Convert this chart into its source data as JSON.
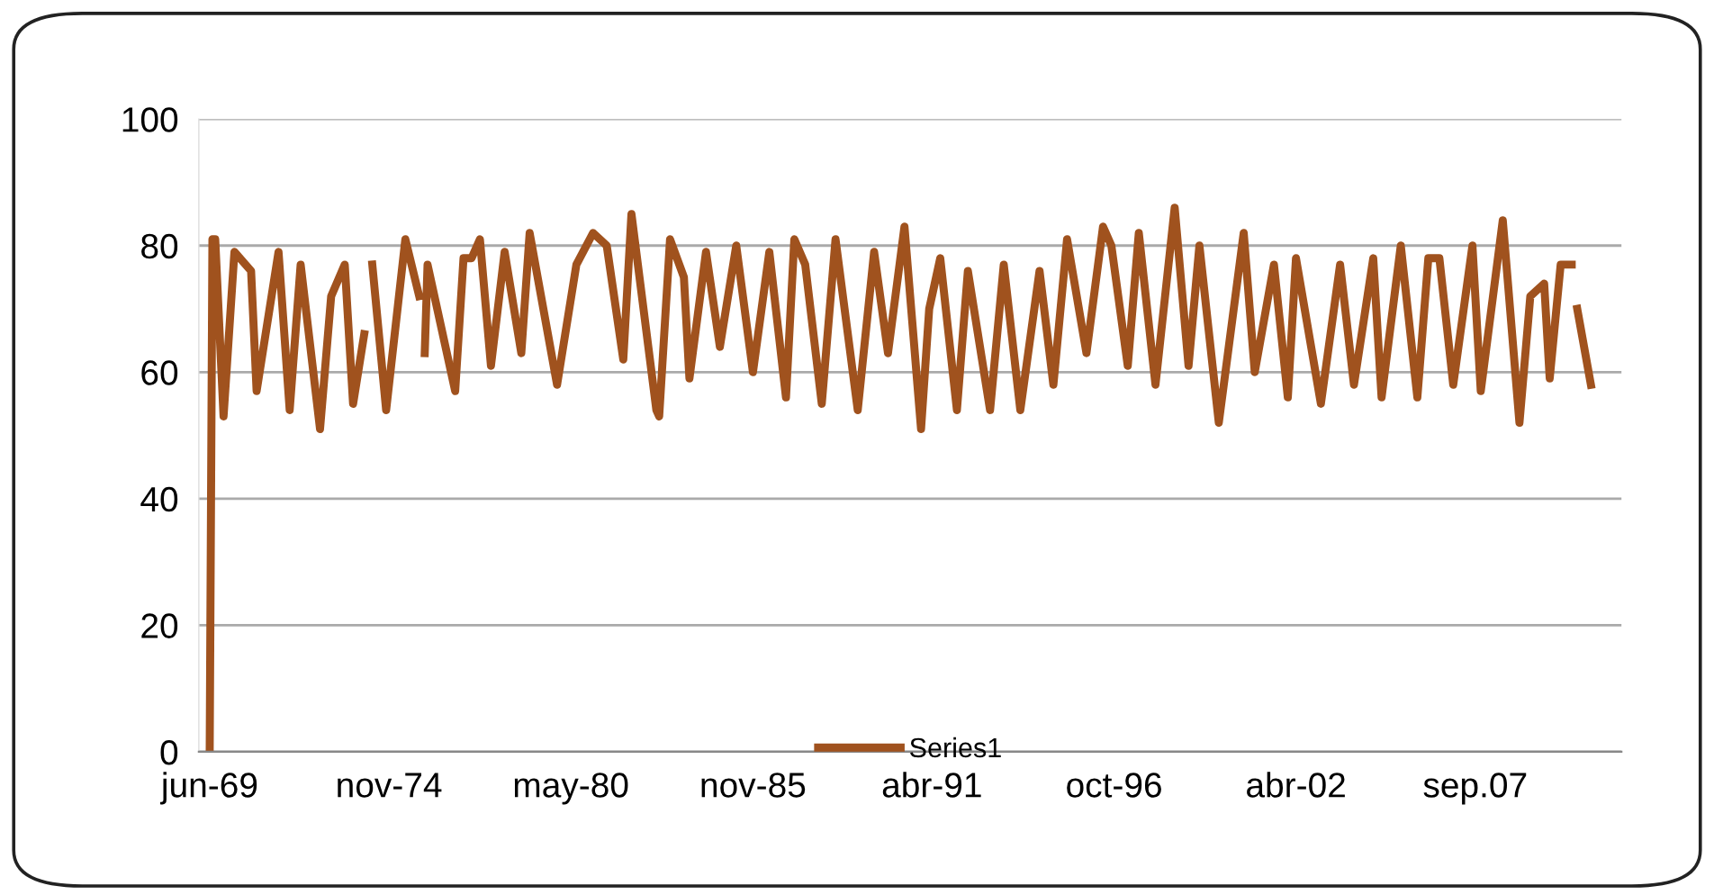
{
  "chart_data": {
    "type": "line",
    "x": [
      "1969-06",
      "1969-07",
      "1969-08",
      "1969-11",
      "1970-03",
      "1970-09",
      "1970-11",
      "1971-07",
      "1971-11",
      "1972-03",
      "1972-10",
      "1973-02",
      "1973-07",
      "1973-10",
      "1974-02",
      "1974-03",
      "1974-05",
      "1974-10",
      "1975-05",
      "1975-10",
      "1975-11",
      "1975-12",
      "1976-01",
      "1976-11",
      "1977-02",
      "1977-05",
      "1977-08",
      "1977-12",
      "1978-05",
      "1978-11",
      "1979-02",
      "1979-12",
      "1980-07",
      "1981-01",
      "1981-06",
      "1981-12",
      "1982-03",
      "1982-12",
      "1983-01",
      "1983-05",
      "1983-10",
      "1983-12",
      "1984-06",
      "1984-11",
      "1985-05",
      "1985-11",
      "1986-05",
      "1986-11",
      "1987-02",
      "1987-06",
      "1987-12",
      "1988-05",
      "1989-01",
      "1989-07",
      "1989-12",
      "1990-06",
      "1990-12",
      "1991-03",
      "1991-07",
      "1992-01",
      "1992-05",
      "1993-01",
      "1993-06",
      "1993-12",
      "1994-07",
      "1994-12",
      "1995-05",
      "1995-12",
      "1996-06",
      "1996-09",
      "1997-03",
      "1997-07",
      "1998-01",
      "1998-08",
      "1999-01",
      "1999-05",
      "1999-12",
      "2000-09",
      "2001-01",
      "2001-08",
      "2002-01",
      "2002-04",
      "2003-01",
      "2003-08",
      "2004-01",
      "2004-08",
      "2004-11",
      "2005-06",
      "2005-12",
      "2006-04",
      "2006-08",
      "2007-01",
      "2007-08",
      "2007-11",
      "2008-07",
      "2009-01",
      "2009-05",
      "2009-10",
      "2009-12",
      "2010-04",
      "2010-08",
      "2010-09",
      "2010-10",
      "2011-03"
    ],
    "series": [
      {
        "name": "Series1",
        "color": "#a0521e",
        "values": [
          0,
          81,
          81,
          53,
          79,
          76,
          57,
          79,
          54,
          77,
          51,
          72,
          77,
          55,
          66,
          null,
          77,
          54,
          81,
          72,
          null,
          63,
          77,
          57,
          78,
          78,
          81,
          61,
          79,
          63,
          82,
          58,
          77,
          82,
          80,
          62,
          85,
          54,
          53,
          81,
          75,
          59,
          79,
          64,
          80,
          60,
          79,
          56,
          81,
          77,
          55,
          81,
          54,
          79,
          63,
          83,
          51,
          70,
          78,
          54,
          76,
          54,
          77,
          54,
          76,
          58,
          81,
          63,
          83,
          80,
          61,
          82,
          58,
          86,
          61,
          80,
          52,
          82,
          60,
          77,
          56,
          78,
          55,
          77,
          58,
          78,
          56,
          80,
          56,
          78,
          78,
          58,
          80,
          57,
          84,
          52,
          72,
          74,
          59,
          77,
          77,
          null,
          70,
          58
        ]
      }
    ],
    "xlim": [
      "1969-02",
      "2012-02"
    ],
    "xticks": [
      {
        "value": "1969-06",
        "label": "jun-69"
      },
      {
        "value": "1974-11",
        "label": "nov-74"
      },
      {
        "value": "1980-05",
        "label": "may-80"
      },
      {
        "value": "1985-11",
        "label": "nov-85"
      },
      {
        "value": "1991-04",
        "label": "abr-91"
      },
      {
        "value": "1996-10",
        "label": "oct-96"
      },
      {
        "value": "2002-04",
        "label": "abr-02"
      },
      {
        "value": "2007-09",
        "label": "sep.07"
      }
    ],
    "ylim": [
      0,
      100
    ],
    "yticks": [
      0,
      20,
      40,
      60,
      80,
      100
    ],
    "grid": "y",
    "legend": "bottom",
    "marker": "none",
    "line_style": "solid"
  }
}
